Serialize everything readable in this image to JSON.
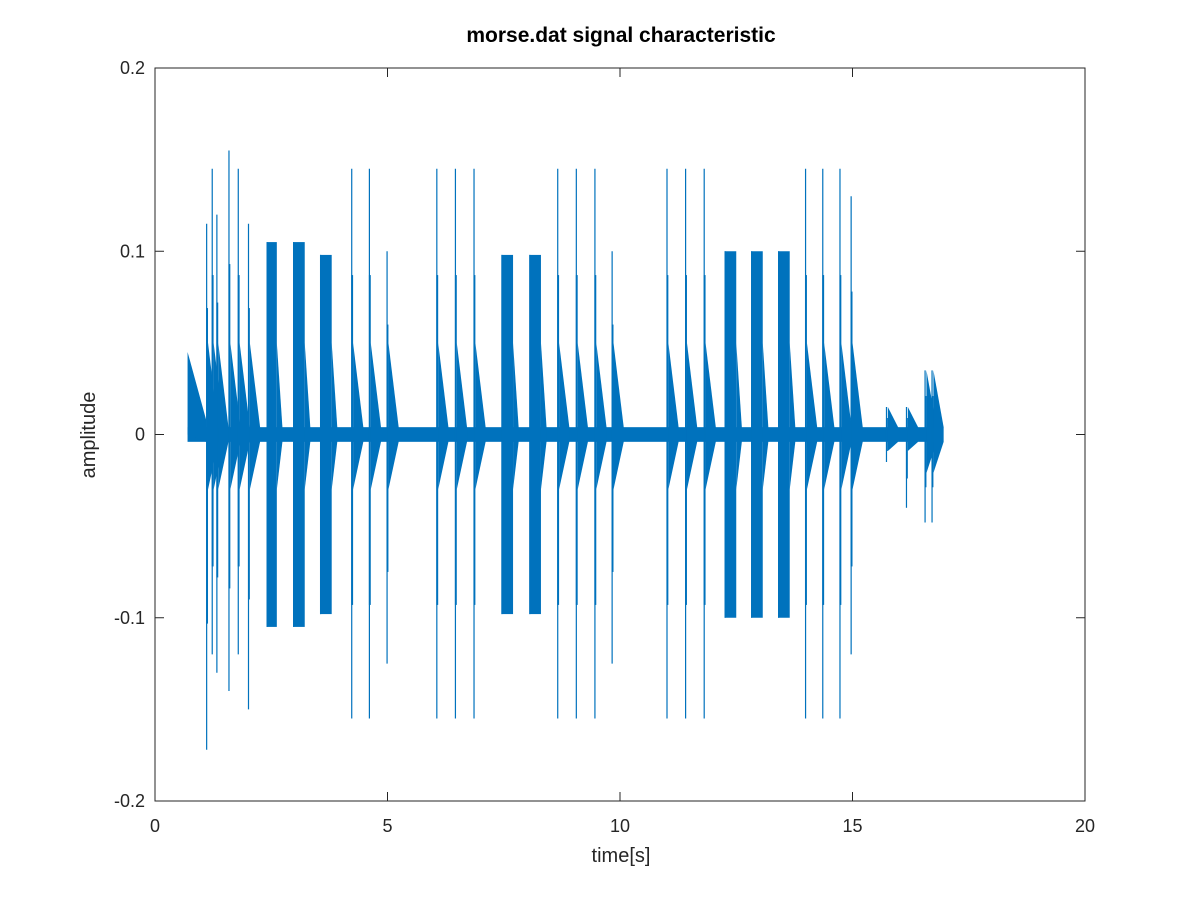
{
  "chart_data": {
    "type": "line",
    "title": "morse.dat signal characteristic",
    "xlabel": "time[s]",
    "ylabel": "amplitude",
    "xlim": [
      0,
      20
    ],
    "ylim": [
      -0.2,
      0.2
    ],
    "xticks": [
      0,
      5,
      10,
      15,
      20
    ],
    "xtick_labels": [
      "0",
      "5",
      "10",
      "15",
      "20"
    ],
    "yticks": [
      -0.2,
      -0.1,
      0,
      0.1,
      0.2
    ],
    "ytick_labels": [
      "-0.2",
      "-0.1",
      "0",
      "0.1",
      "0.2"
    ],
    "grid": false,
    "box": true,
    "line_color": "#0072bd",
    "signal_start": 0.7,
    "signal_end": 16.8,
    "noise_floor": 0.004,
    "onset_transient": {
      "start": 0.7,
      "end": 1.1,
      "start_level": 0.045
    },
    "pulses": [
      {
        "start": 1.1,
        "end": 1.14,
        "max": 0.115,
        "min": -0.172
      },
      {
        "start": 1.22,
        "end": 1.26,
        "max": 0.145,
        "min": -0.12
      },
      {
        "start": 1.32,
        "end": 1.36,
        "max": 0.12,
        "min": -0.13
      },
      {
        "start": 1.58,
        "end": 1.62,
        "max": 0.155,
        "min": -0.14
      },
      {
        "start": 1.78,
        "end": 1.82,
        "max": 0.145,
        "min": -0.12
      },
      {
        "start": 2.0,
        "end": 2.04,
        "max": 0.115,
        "min": -0.15
      },
      {
        "start": 2.4,
        "end": 2.62,
        "max": 0.105,
        "min": -0.105
      },
      {
        "start": 2.97,
        "end": 3.22,
        "max": 0.105,
        "min": -0.105
      },
      {
        "start": 3.55,
        "end": 3.8,
        "max": 0.098,
        "min": -0.098
      },
      {
        "start": 4.22,
        "end": 4.26,
        "max": 0.145,
        "min": -0.155
      },
      {
        "start": 4.6,
        "end": 4.64,
        "max": 0.145,
        "min": -0.155
      },
      {
        "start": 4.98,
        "end": 5.02,
        "max": 0.1,
        "min": -0.125
      },
      {
        "start": 6.05,
        "end": 6.09,
        "max": 0.145,
        "min": -0.155
      },
      {
        "start": 6.45,
        "end": 6.49,
        "max": 0.145,
        "min": -0.155
      },
      {
        "start": 6.85,
        "end": 6.89,
        "max": 0.145,
        "min": -0.155
      },
      {
        "start": 7.45,
        "end": 7.7,
        "max": 0.098,
        "min": -0.098
      },
      {
        "start": 8.05,
        "end": 8.3,
        "max": 0.098,
        "min": -0.098
      },
      {
        "start": 8.65,
        "end": 8.69,
        "max": 0.145,
        "min": -0.155
      },
      {
        "start": 9.05,
        "end": 9.09,
        "max": 0.145,
        "min": -0.155
      },
      {
        "start": 9.45,
        "end": 9.49,
        "max": 0.145,
        "min": -0.155
      },
      {
        "start": 9.82,
        "end": 9.86,
        "max": 0.1,
        "min": -0.125
      },
      {
        "start": 11.0,
        "end": 11.04,
        "max": 0.145,
        "min": -0.155
      },
      {
        "start": 11.4,
        "end": 11.44,
        "max": 0.145,
        "min": -0.155
      },
      {
        "start": 11.8,
        "end": 11.84,
        "max": 0.145,
        "min": -0.155
      },
      {
        "start": 12.25,
        "end": 12.5,
        "max": 0.1,
        "min": -0.1
      },
      {
        "start": 12.82,
        "end": 13.07,
        "max": 0.1,
        "min": -0.1
      },
      {
        "start": 13.4,
        "end": 13.65,
        "max": 0.1,
        "min": -0.1
      },
      {
        "start": 13.98,
        "end": 14.02,
        "max": 0.145,
        "min": -0.155
      },
      {
        "start": 14.35,
        "end": 14.39,
        "max": 0.145,
        "min": -0.155
      },
      {
        "start": 14.72,
        "end": 14.76,
        "max": 0.145,
        "min": -0.155
      },
      {
        "start": 14.96,
        "end": 15.0,
        "max": 0.13,
        "min": -0.12
      },
      {
        "start": 15.72,
        "end": 15.76,
        "max": 0.015,
        "min": -0.015
      },
      {
        "start": 16.15,
        "end": 16.19,
        "max": 0.015,
        "min": -0.04
      },
      {
        "start": 16.55,
        "end": 16.59,
        "max": 0.035,
        "min": -0.048
      },
      {
        "start": 16.7,
        "end": 16.74,
        "max": 0.035,
        "min": -0.048
      }
    ]
  }
}
